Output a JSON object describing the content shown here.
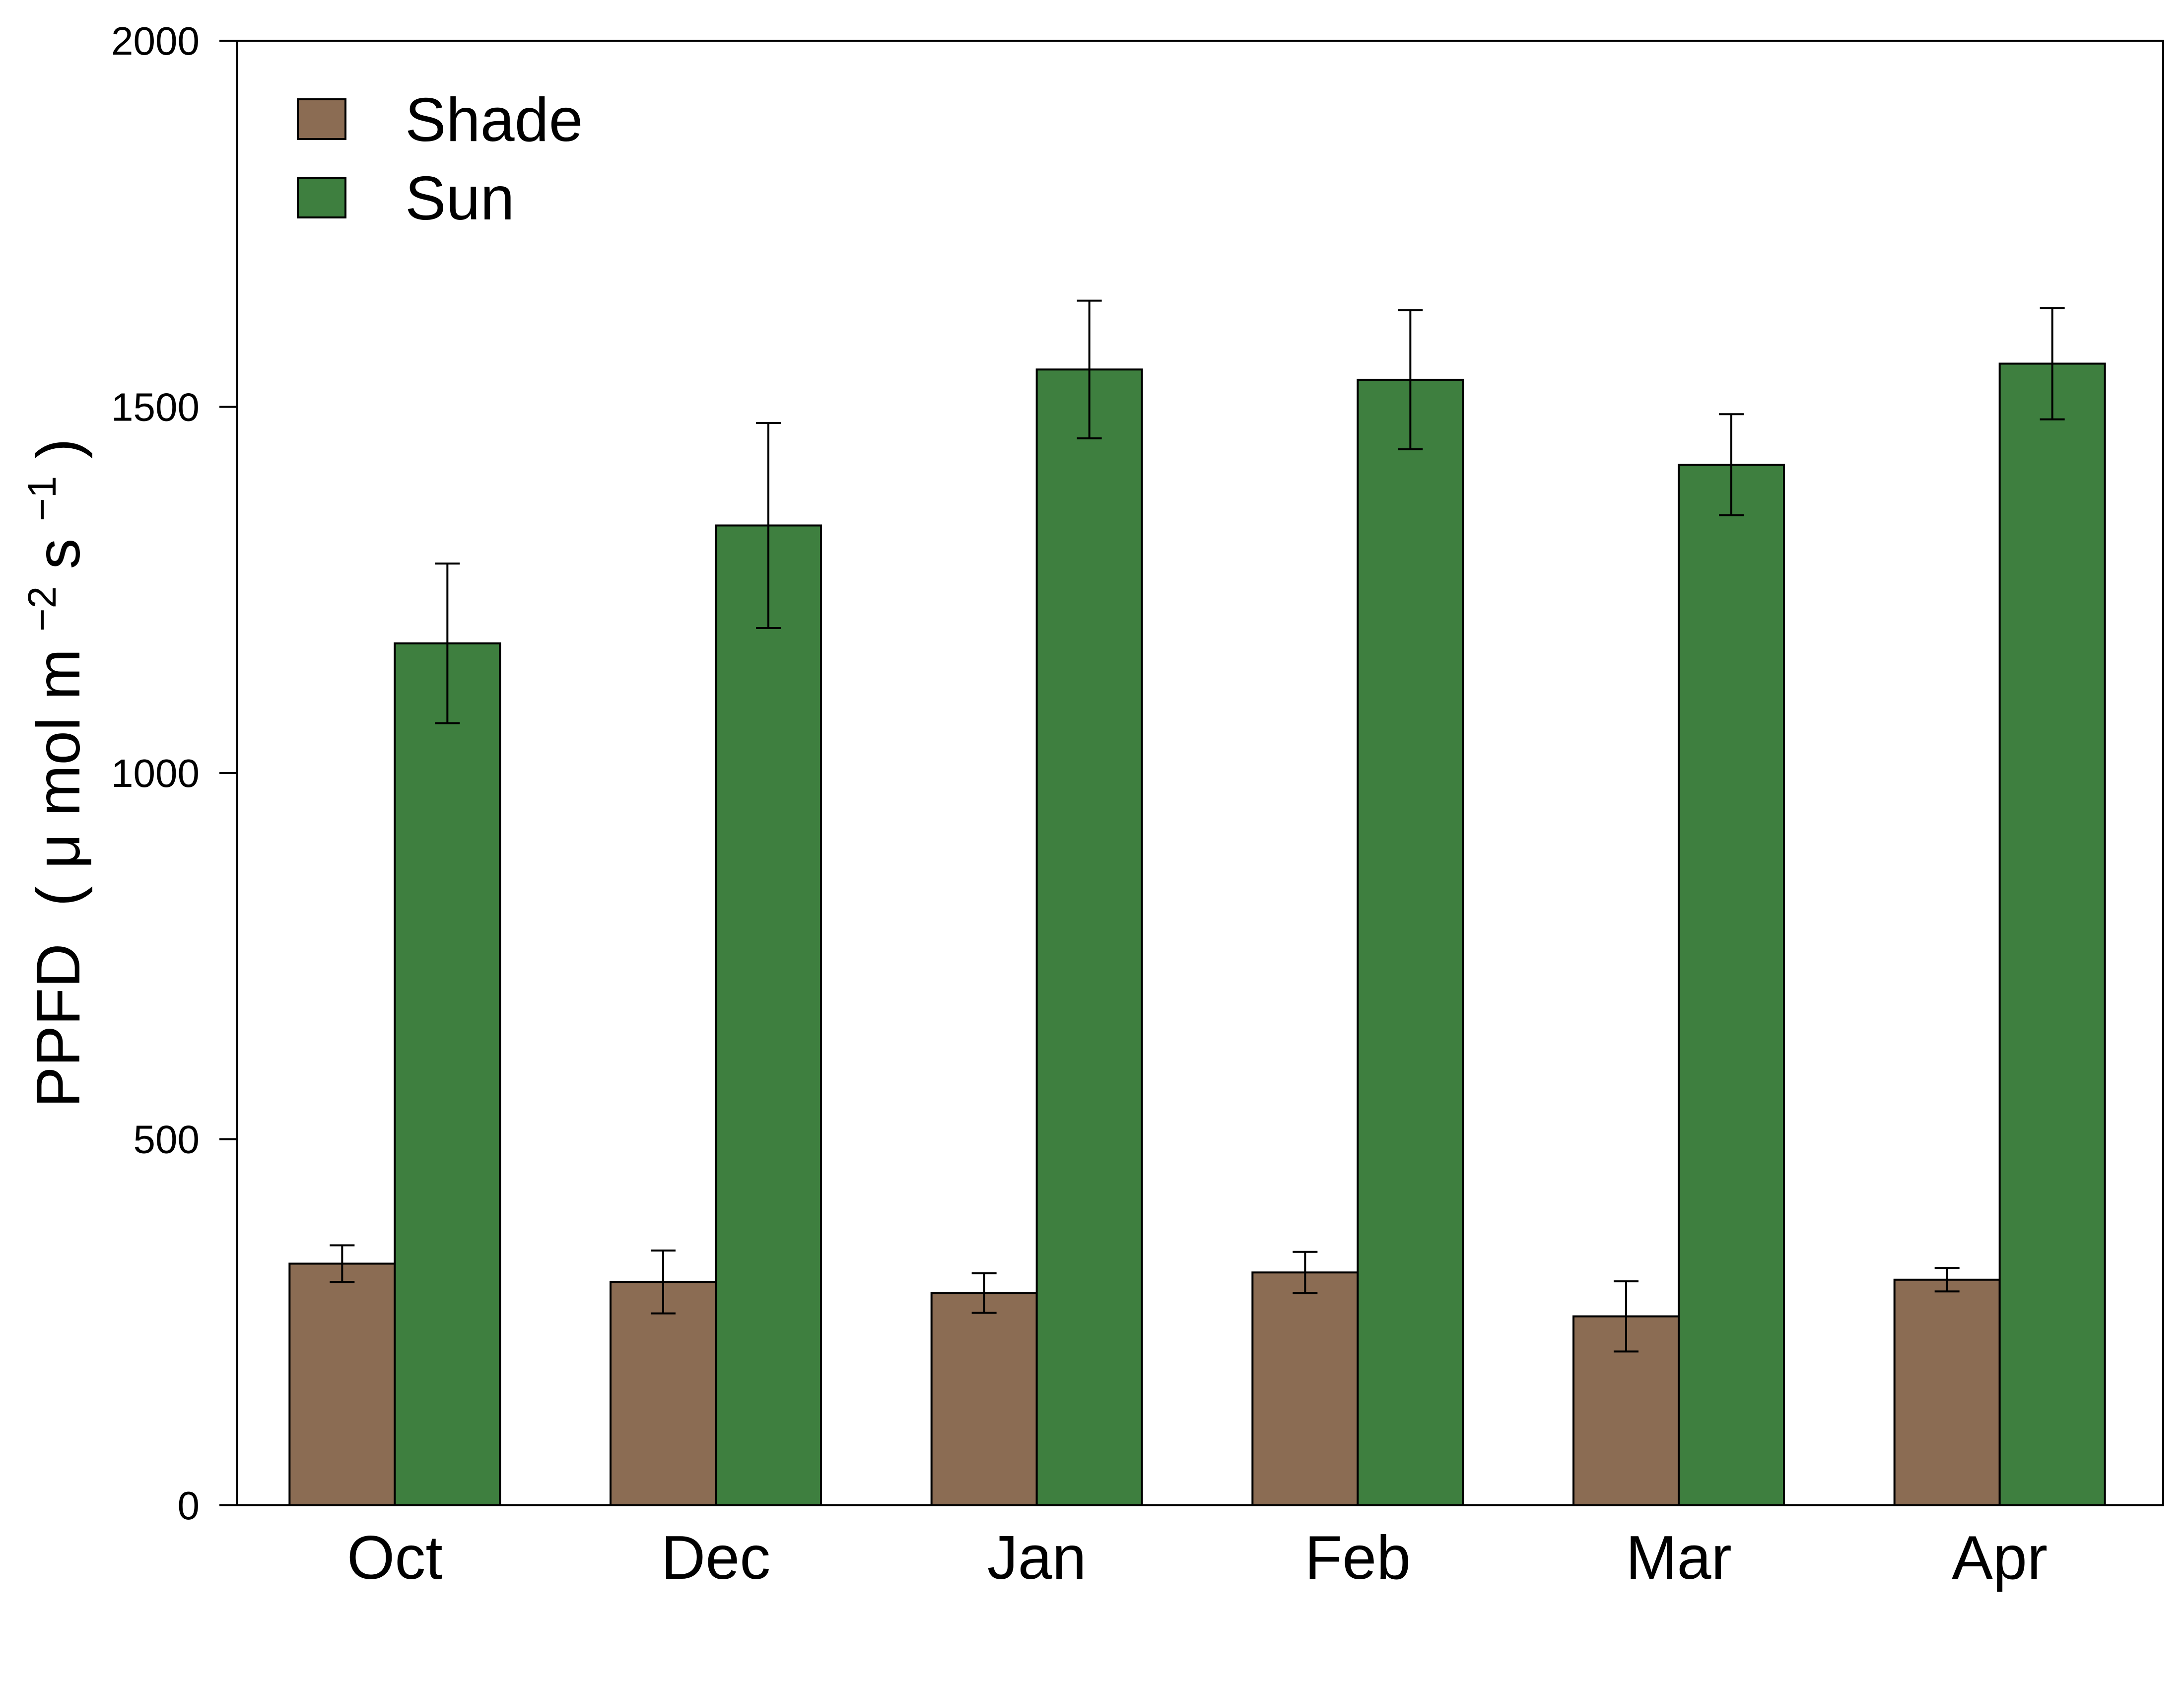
{
  "chart_data": {
    "type": "bar",
    "categories": [
      "Oct",
      "Dec",
      "Jan",
      "Feb",
      "Mar",
      "Apr"
    ],
    "series": [
      {
        "name": "Shade",
        "values": [
          330,
          305,
          290,
          318,
          258,
          308
        ],
        "errors": [
          25,
          43,
          27,
          28,
          48,
          16
        ],
        "color": "#8B6C53"
      },
      {
        "name": "Sun",
        "values": [
          1177,
          1338,
          1551,
          1537,
          1421,
          1559
        ],
        "errors": [
          109,
          140,
          94,
          95,
          69,
          76
        ],
        "color": "#3E7F3F"
      }
    ],
    "ylabel": {
      "main": "PPFD",
      "unit_open": "(",
      "mu": "μ",
      "unit_mid": "mol m",
      "sup1": "−2",
      "unit_s": " s",
      "sup2": "−1",
      "unit_close": ")"
    },
    "xlabel": "",
    "title": "",
    "ylim": [
      0,
      2000
    ],
    "yticks": [
      0,
      500,
      1000,
      1500,
      2000
    ],
    "legend_position": "top-left",
    "grid": false
  }
}
